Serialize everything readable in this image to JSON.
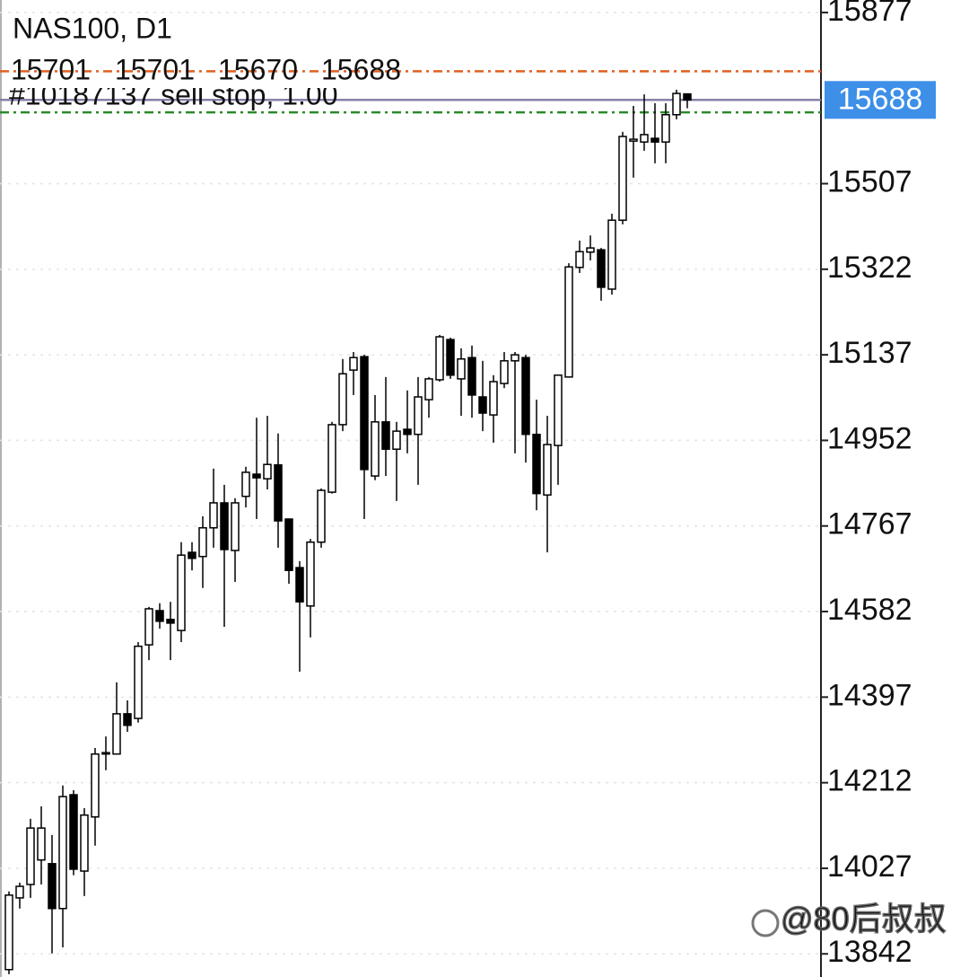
{
  "chart_data": {
    "type": "candlestick",
    "title": "NAS100, D1",
    "open": [
      13808,
      13963,
      13992,
      14045,
      14037,
      13940,
      14186,
      14021,
      14138,
      14274,
      14274,
      14361,
      14351,
      14510,
      14584,
      14565,
      14541,
      14710,
      14701,
      14763,
      14817,
      14714,
      14831,
      14879,
      14869,
      14899,
      14782,
      14677,
      14594,
      14732,
      14840,
      14986,
      15104,
      15133,
      14875,
      14992,
      14933,
      14976,
      14965,
      15040,
      15083,
      15170,
      15085,
      15131,
      15046,
      15007,
      15075,
      15124,
      15131,
      14965,
      14834,
      14941,
      15089,
      15326,
      15359,
      15364,
      15279,
      15428,
      15599,
      15597,
      15605,
      15597,
      15656,
      15701
    ],
    "high": [
      13977,
      13996,
      14134,
      14161,
      14099,
      14206,
      14196,
      14157,
      14287,
      14312,
      14429,
      14390,
      14516,
      14592,
      14600,
      14603,
      14732,
      14732,
      14788,
      14891,
      14856,
      14827,
      14895,
      15001,
      15005,
      14967,
      14782,
      14691,
      14739,
      14848,
      14992,
      15128,
      15143,
      15137,
      15050,
      15089,
      14992,
      15060,
      15089,
      15089,
      15180,
      15174,
      15151,
      15157,
      15124,
      15093,
      15143,
      15143,
      15137,
      15040,
      15005,
      15093,
      15335,
      15384,
      15395,
      15368,
      15442,
      15619,
      15675,
      15700,
      15681,
      15681,
      15710,
      15701
    ],
    "low": [
      13798,
      13940,
      13963,
      13992,
      13843,
      13856,
      14012,
      13967,
      14076,
      14239,
      14274,
      14322,
      14342,
      14477,
      14545,
      14477,
      14516,
      14671,
      14633,
      14720,
      14549,
      14646,
      14807,
      14782,
      14846,
      14720,
      14642,
      14452,
      14526,
      14720,
      14837,
      14972,
      15050,
      14782,
      14866,
      14875,
      14821,
      14924,
      14856,
      15001,
      15079,
      15085,
      15005,
      15001,
      14972,
      14947,
      15065,
      14924,
      14904,
      14801,
      14710,
      14856,
      15089,
      15314,
      15341,
      15254,
      15267,
      15419,
      15520,
      15578,
      15551,
      15551,
      15646,
      15670
    ],
    "close": [
      13969,
      13988,
      14114,
      14114,
      13940,
      14182,
      14025,
      14142,
      14274,
      14277,
      14361,
      14336,
      14507,
      14588,
      14561,
      14557,
      14704,
      14697,
      14763,
      14817,
      14716,
      14817,
      14883,
      14871,
      14900,
      14778,
      14671,
      14603,
      14732,
      14844,
      14986,
      15096,
      15131,
      14889,
      14992,
      14933,
      14972,
      14965,
      15046,
      15085,
      15176,
      15093,
      15128,
      15050,
      15011,
      15079,
      15124,
      15137,
      14965,
      14837,
      14943,
      15093,
      15327,
      15360,
      15368,
      15283,
      15428,
      15609,
      15603,
      15613,
      15597,
      15656,
      15702,
      15688
    ],
    "up_color": "#ffffff",
    "down_color": "#000000",
    "ylim": [
      13792,
      15904
    ],
    "yticks": [
      15877,
      15507,
      15322,
      15137,
      14952,
      14767,
      14582,
      14397,
      14212,
      14027,
      13842
    ],
    "grid": true,
    "current_price": 15688,
    "current_price_color": "#3d8fe8",
    "order_lines": [
      {
        "value": 15750,
        "color": "#e06020"
      },
      {
        "value": 15661,
        "color": "#2a8a2a"
      }
    ],
    "order_label": "#10187137 sell stop, 1.00",
    "watermark": "@80后叔叔"
  }
}
